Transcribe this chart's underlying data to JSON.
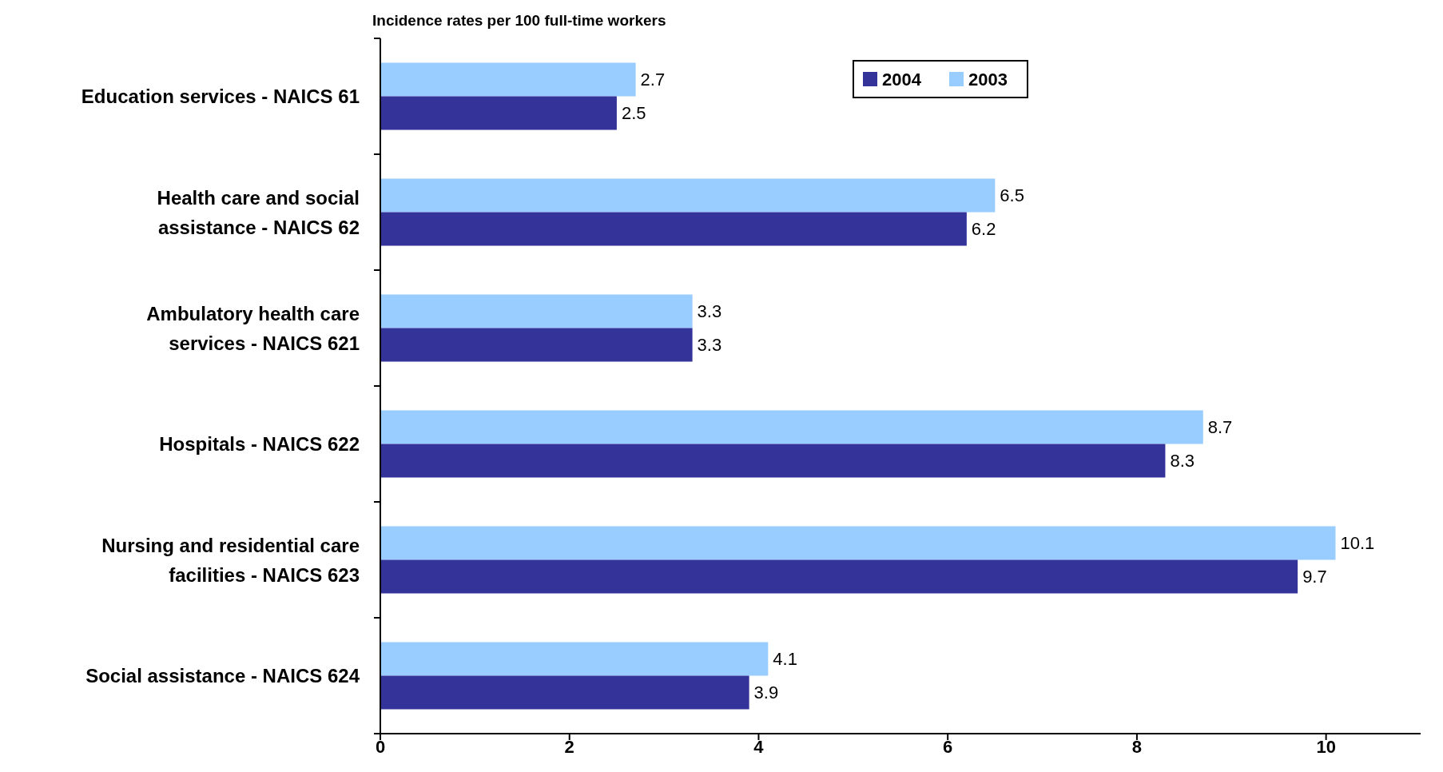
{
  "chart_data": {
    "type": "bar",
    "orientation": "horizontal",
    "title": "Incidence rates per 100 full-time workers",
    "categories": [
      "Education services - NAICS 61",
      "Health care and social assistance - NAICS 62",
      "Ambulatory health care services - NAICS 621",
      "Hospitals - NAICS 622",
      "Nursing and residential care facilities - NAICS 623",
      "Social assistance - NAICS 624"
    ],
    "series": [
      {
        "name": "2003",
        "color": "#99ccff",
        "values": [
          2.7,
          6.5,
          3.3,
          8.7,
          10.1,
          4.1
        ]
      },
      {
        "name": "2004",
        "color": "#333399",
        "values": [
          2.5,
          6.2,
          3.3,
          8.3,
          9.7,
          3.9
        ]
      }
    ],
    "xlim": [
      0,
      11
    ],
    "xticks": [
      0,
      2,
      4,
      6,
      8,
      10
    ],
    "data_labels": true,
    "legend": "top right",
    "grid": false
  }
}
